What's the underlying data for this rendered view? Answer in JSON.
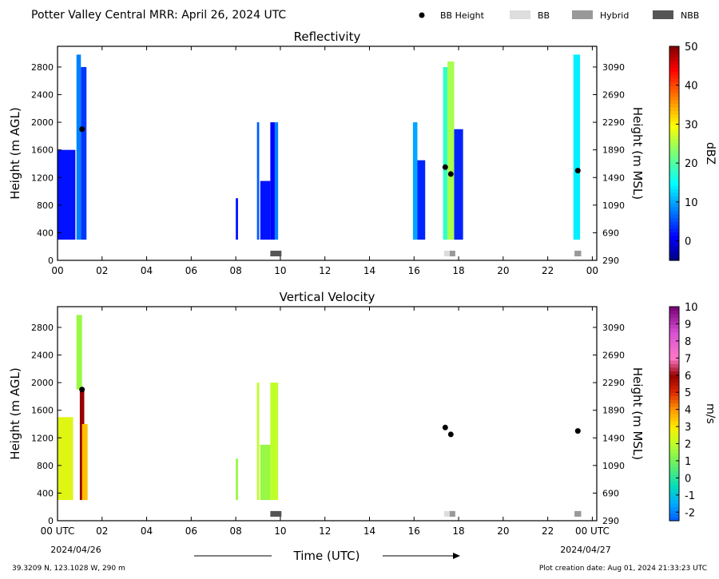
{
  "header": {
    "title": "Potter Valley Central MRR:  April 26, 2024 UTC",
    "legend": [
      {
        "label": "BB Height",
        "color": "#000000",
        "shape": "dot"
      },
      {
        "label": "BB",
        "color": "#dddddd",
        "shape": "rect"
      },
      {
        "label": "Hybrid",
        "color": "#999999",
        "shape": "rect"
      },
      {
        "label": "NBB",
        "color": "#555555",
        "shape": "rect"
      }
    ]
  },
  "footer": {
    "location": "39.3209 N, 123.1028 W, 290 m",
    "created": "Plot creation date: Aug 01, 2024 21:33:23 UTC",
    "start_date": "2024/04/26",
    "end_date": "2024/04/27",
    "xlabel": "Time (UTC)"
  },
  "chart_data": [
    {
      "type": "heatmap",
      "title": "Reflectivity",
      "ylabel": "Height (m AGL)",
      "ylabel_right": "Height (m MSL)",
      "colorbar_label": "dBZ",
      "xlim": [
        0,
        24.2
      ],
      "ylim": [
        0,
        3100
      ],
      "x_ticks": [
        "00",
        "02",
        "04",
        "06",
        "08",
        "10",
        "12",
        "14",
        "16",
        "18",
        "20",
        "22",
        "00"
      ],
      "y_ticks": [
        0,
        400,
        800,
        1200,
        1600,
        2000,
        2400,
        2800
      ],
      "y_ticks_right": [
        "290",
        "690",
        "1090",
        "1490",
        "1890",
        "2290",
        "2690",
        "3090"
      ],
      "colorbar": {
        "min": -5,
        "max": 50,
        "ticks": [
          "0",
          "10",
          "20",
          "30",
          "40",
          "50"
        ],
        "tick_values": [
          0,
          10,
          20,
          30,
          40,
          50
        ]
      },
      "bb_height": [
        {
          "t": 1.1,
          "h": 1900
        },
        {
          "t": 17.4,
          "h": 1350
        },
        {
          "t": 17.65,
          "h": 1250
        },
        {
          "t": 23.35,
          "h": 1300
        }
      ],
      "bb_type": [
        {
          "t0": 9.55,
          "t1": 10.05,
          "type": "NBB"
        },
        {
          "t0": 17.35,
          "t1": 17.6,
          "type": "BB"
        },
        {
          "t0": 17.6,
          "t1": 17.85,
          "type": "Hybrid"
        },
        {
          "t0": 23.2,
          "t1": 23.5,
          "type": "Hybrid"
        }
      ],
      "echoes": [
        {
          "t0": 0.0,
          "t1": 0.8,
          "h0": 300,
          "h1": 1600,
          "v": 2
        },
        {
          "t0": 0.85,
          "t1": 1.05,
          "h0": 300,
          "h1": 2980,
          "v": 8
        },
        {
          "t0": 1.05,
          "t1": 1.3,
          "h0": 300,
          "h1": 2800,
          "v": 4
        },
        {
          "t0": 8.0,
          "t1": 8.1,
          "h0": 300,
          "h1": 900,
          "v": 2
        },
        {
          "t0": 8.95,
          "t1": 9.05,
          "h0": 300,
          "h1": 2000,
          "v": 6
        },
        {
          "t0": 9.1,
          "t1": 9.55,
          "h0": 300,
          "h1": 1150,
          "v": 2
        },
        {
          "t0": 9.55,
          "t1": 9.75,
          "h0": 300,
          "h1": 2000,
          "v": 1
        },
        {
          "t0": 9.75,
          "t1": 9.9,
          "h0": 300,
          "h1": 2000,
          "v": 8
        },
        {
          "t0": 15.95,
          "t1": 16.15,
          "h0": 300,
          "h1": 2000,
          "v": 10
        },
        {
          "t0": 16.15,
          "t1": 16.5,
          "h0": 300,
          "h1": 1450,
          "v": 3
        },
        {
          "t0": 17.3,
          "t1": 17.5,
          "h0": 300,
          "h1": 2800,
          "v": 18
        },
        {
          "t0": 17.5,
          "t1": 17.8,
          "h0": 300,
          "h1": 2880,
          "v": 25
        },
        {
          "t0": 17.8,
          "t1": 18.2,
          "h0": 300,
          "h1": 1900,
          "v": 3
        },
        {
          "t0": 23.15,
          "t1": 23.45,
          "h0": 300,
          "h1": 2980,
          "v": 14
        }
      ]
    },
    {
      "type": "heatmap",
      "title": "Vertical Velocity",
      "ylabel": "Height (m AGL)",
      "ylabel_right": "Height (m MSL)",
      "colorbar_label": "m/s",
      "xlim": [
        0,
        24.2
      ],
      "ylim": [
        0,
        3100
      ],
      "x_ticks": [
        "00 UTC",
        "02",
        "04",
        "06",
        "08",
        "10",
        "12",
        "14",
        "16",
        "18",
        "20",
        "22",
        "00 UTC"
      ],
      "y_ticks": [
        0,
        400,
        800,
        1200,
        1600,
        2000,
        2400,
        2800
      ],
      "y_ticks_right": [
        "290",
        "690",
        "1090",
        "1490",
        "1890",
        "2290",
        "2690",
        "3090"
      ],
      "colorbar": {
        "min": -2.5,
        "max": 10,
        "ticks": [
          "-2",
          "-1",
          "0",
          "1",
          "2",
          "3",
          "4",
          "5",
          "6",
          "7",
          "8",
          "9",
          "10"
        ],
        "tick_values": [
          -2,
          -1,
          0,
          1,
          2,
          3,
          4,
          5,
          6,
          7,
          8,
          9,
          10
        ]
      },
      "bb_height": [
        {
          "t": 1.1,
          "h": 1900
        },
        {
          "t": 17.4,
          "h": 1350
        },
        {
          "t": 17.65,
          "h": 1250
        },
        {
          "t": 23.35,
          "h": 1300
        }
      ],
      "bb_type": [
        {
          "t0": 9.55,
          "t1": 10.05,
          "type": "NBB"
        },
        {
          "t0": 17.35,
          "t1": 17.6,
          "type": "BB"
        },
        {
          "t0": 17.6,
          "t1": 17.85,
          "type": "Hybrid"
        },
        {
          "t0": 23.2,
          "t1": 23.5,
          "type": "Hybrid"
        }
      ],
      "echoes": [
        {
          "t0": 0.0,
          "t1": 0.7,
          "h0": 300,
          "h1": 1500,
          "v": 2.5
        },
        {
          "t0": 0.85,
          "t1": 1.1,
          "h0": 1900,
          "h1": 2980,
          "v": 1.5
        },
        {
          "t0": 1.0,
          "t1": 1.2,
          "h0": 300,
          "h1": 1900,
          "v": 6
        },
        {
          "t0": 1.1,
          "t1": 1.35,
          "h0": 300,
          "h1": 1400,
          "v": 3.5
        },
        {
          "t0": 8.0,
          "t1": 8.1,
          "h0": 300,
          "h1": 900,
          "v": 1.5
        },
        {
          "t0": 8.95,
          "t1": 9.05,
          "h0": 300,
          "h1": 2000,
          "v": 2
        },
        {
          "t0": 9.1,
          "t1": 9.55,
          "h0": 300,
          "h1": 1100,
          "v": 1.5
        },
        {
          "t0": 9.55,
          "t1": 9.9,
          "h0": 300,
          "h1": 2000,
          "v": 2
        }
      ]
    }
  ]
}
